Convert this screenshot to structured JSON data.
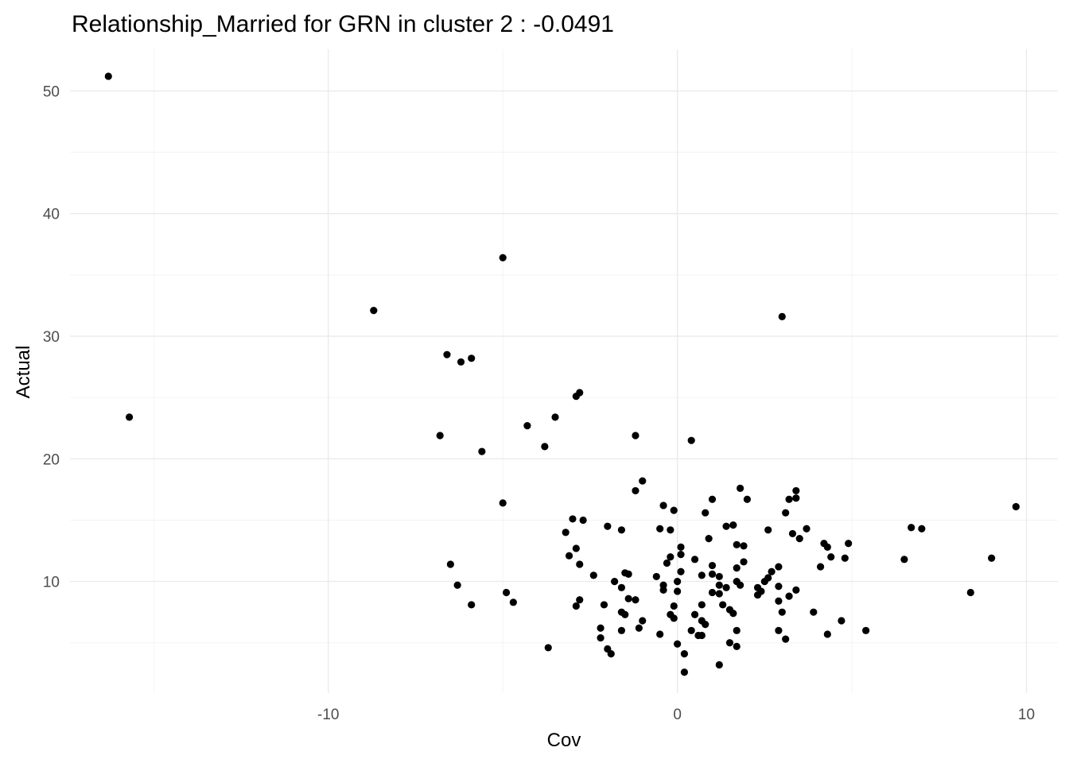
{
  "chart_data": {
    "type": "scatter",
    "title": "Relationship_Married for GRN in cluster 2 : -0.0491",
    "xlabel": "Cov",
    "ylabel": "Actual",
    "xlim": [
      -17.4,
      10.9
    ],
    "ylim": [
      0.9,
      53.4
    ],
    "x_ticks": [
      -10,
      0,
      10
    ],
    "x_tick_labels": [
      "-10",
      "0",
      "10"
    ],
    "x_minor_ticks": [
      -15,
      -5,
      5
    ],
    "y_ticks": [
      10,
      20,
      30,
      40,
      50
    ],
    "y_tick_labels": [
      "10",
      "20",
      "30",
      "40",
      "50"
    ],
    "y_minor_ticks": [
      5,
      15,
      25,
      35,
      45
    ],
    "grid": true,
    "legend": "none",
    "point_color": "#000000",
    "grid_color": "#ebebeb",
    "points": [
      {
        "x": -16.3,
        "y": 51.2
      },
      {
        "x": -15.7,
        "y": 23.4
      },
      {
        "x": -5.0,
        "y": 36.4
      },
      {
        "x": -8.7,
        "y": 32.1
      },
      {
        "x": 3.0,
        "y": 31.6
      },
      {
        "x": -6.6,
        "y": 28.5
      },
      {
        "x": -6.2,
        "y": 27.9
      },
      {
        "x": -5.9,
        "y": 28.2
      },
      {
        "x": -2.8,
        "y": 25.4
      },
      {
        "x": -2.9,
        "y": 25.1
      },
      {
        "x": -3.5,
        "y": 23.4
      },
      {
        "x": -4.3,
        "y": 22.7
      },
      {
        "x": -6.8,
        "y": 21.9
      },
      {
        "x": -3.8,
        "y": 21.0
      },
      {
        "x": -1.2,
        "y": 21.9
      },
      {
        "x": 0.4,
        "y": 21.5
      },
      {
        "x": -5.6,
        "y": 20.6
      },
      {
        "x": -1.0,
        "y": 18.2
      },
      {
        "x": -1.2,
        "y": 17.4
      },
      {
        "x": 1.8,
        "y": 17.6
      },
      {
        "x": 3.4,
        "y": 17.4
      },
      {
        "x": 2.0,
        "y": 16.7
      },
      {
        "x": 3.4,
        "y": 16.8
      },
      {
        "x": 3.2,
        "y": 16.7
      },
      {
        "x": 1.0,
        "y": 16.7
      },
      {
        "x": -5.0,
        "y": 16.4
      },
      {
        "x": -0.4,
        "y": 16.2
      },
      {
        "x": -0.1,
        "y": 15.8
      },
      {
        "x": 0.8,
        "y": 15.6
      },
      {
        "x": 3.1,
        "y": 15.6
      },
      {
        "x": -3.0,
        "y": 15.1
      },
      {
        "x": -2.7,
        "y": 15.0
      },
      {
        "x": -2.0,
        "y": 14.5
      },
      {
        "x": -1.6,
        "y": 14.2
      },
      {
        "x": -0.5,
        "y": 14.3
      },
      {
        "x": -0.2,
        "y": 14.2
      },
      {
        "x": 1.4,
        "y": 14.5
      },
      {
        "x": 1.6,
        "y": 14.6
      },
      {
        "x": 2.6,
        "y": 14.2
      },
      {
        "x": 3.7,
        "y": 14.3
      },
      {
        "x": 3.3,
        "y": 13.9
      },
      {
        "x": 6.7,
        "y": 14.4
      },
      {
        "x": 7.0,
        "y": 14.3
      },
      {
        "x": 9.7,
        "y": 16.1
      },
      {
        "x": -3.2,
        "y": 14.0
      },
      {
        "x": 0.9,
        "y": 13.5
      },
      {
        "x": 3.5,
        "y": 13.5
      },
      {
        "x": 4.2,
        "y": 13.1
      },
      {
        "x": 4.9,
        "y": 13.1
      },
      {
        "x": 4.3,
        "y": 12.8
      },
      {
        "x": 1.7,
        "y": 13.0
      },
      {
        "x": 1.9,
        "y": 12.9
      },
      {
        "x": 0.1,
        "y": 12.8
      },
      {
        "x": -2.9,
        "y": 12.7
      },
      {
        "x": -3.1,
        "y": 12.1
      },
      {
        "x": 0.1,
        "y": 12.2
      },
      {
        "x": -0.2,
        "y": 12.0
      },
      {
        "x": 0.5,
        "y": 11.8
      },
      {
        "x": 1.9,
        "y": 11.6
      },
      {
        "x": 4.4,
        "y": 12.0
      },
      {
        "x": 4.8,
        "y": 11.9
      },
      {
        "x": 6.5,
        "y": 11.8
      },
      {
        "x": 9.0,
        "y": 11.9
      },
      {
        "x": -6.5,
        "y": 11.4
      },
      {
        "x": -2.8,
        "y": 11.4
      },
      {
        "x": -0.3,
        "y": 11.5
      },
      {
        "x": 1.0,
        "y": 11.3
      },
      {
        "x": 1.7,
        "y": 11.1
      },
      {
        "x": 2.9,
        "y": 11.2
      },
      {
        "x": 4.1,
        "y": 11.2
      },
      {
        "x": -1.5,
        "y": 10.7
      },
      {
        "x": -1.4,
        "y": 10.6
      },
      {
        "x": 0.1,
        "y": 10.8
      },
      {
        "x": 0.7,
        "y": 10.5
      },
      {
        "x": 1.0,
        "y": 10.6
      },
      {
        "x": 2.7,
        "y": 10.8
      },
      {
        "x": -2.4,
        "y": 10.5
      },
      {
        "x": -0.6,
        "y": 10.4
      },
      {
        "x": 1.2,
        "y": 10.4
      },
      {
        "x": 2.6,
        "y": 10.3
      },
      {
        "x": -1.8,
        "y": 10.0
      },
      {
        "x": 0.0,
        "y": 10.0
      },
      {
        "x": 1.7,
        "y": 10.0
      },
      {
        "x": 2.5,
        "y": 10.0
      },
      {
        "x": -6.3,
        "y": 9.7
      },
      {
        "x": -0.4,
        "y": 9.7
      },
      {
        "x": 1.2,
        "y": 9.7
      },
      {
        "x": 1.8,
        "y": 9.7
      },
      {
        "x": 2.3,
        "y": 9.5
      },
      {
        "x": 2.9,
        "y": 9.6
      },
      {
        "x": -1.6,
        "y": 9.5
      },
      {
        "x": -0.4,
        "y": 9.3
      },
      {
        "x": 0.0,
        "y": 9.2
      },
      {
        "x": 1.0,
        "y": 9.1
      },
      {
        "x": 1.2,
        "y": 9.0
      },
      {
        "x": 1.4,
        "y": 9.5
      },
      {
        "x": 2.4,
        "y": 9.2
      },
      {
        "x": 3.4,
        "y": 9.3
      },
      {
        "x": 8.4,
        "y": 9.1
      },
      {
        "x": -4.9,
        "y": 9.1
      },
      {
        "x": 2.3,
        "y": 8.9
      },
      {
        "x": -1.4,
        "y": 8.6
      },
      {
        "x": -1.2,
        "y": 8.5
      },
      {
        "x": 3.2,
        "y": 8.8
      },
      {
        "x": -2.8,
        "y": 8.5
      },
      {
        "x": -4.7,
        "y": 8.3
      },
      {
        "x": -5.9,
        "y": 8.1
      },
      {
        "x": -2.9,
        "y": 8.0
      },
      {
        "x": -2.1,
        "y": 8.1
      },
      {
        "x": 0.7,
        "y": 8.1
      },
      {
        "x": 1.3,
        "y": 8.1
      },
      {
        "x": -0.1,
        "y": 8.0
      },
      {
        "x": 1.5,
        "y": 7.7
      },
      {
        "x": 2.9,
        "y": 8.4
      },
      {
        "x": -1.6,
        "y": 7.5
      },
      {
        "x": -1.5,
        "y": 7.3
      },
      {
        "x": -0.2,
        "y": 7.3
      },
      {
        "x": 0.5,
        "y": 7.3
      },
      {
        "x": 1.6,
        "y": 7.4
      },
      {
        "x": 3.0,
        "y": 7.5
      },
      {
        "x": 3.9,
        "y": 7.5
      },
      {
        "x": -0.1,
        "y": 7.0
      },
      {
        "x": -1.0,
        "y": 6.8
      },
      {
        "x": -1.1,
        "y": 6.2
      },
      {
        "x": 0.7,
        "y": 6.8
      },
      {
        "x": 0.8,
        "y": 6.5
      },
      {
        "x": 4.7,
        "y": 6.8
      },
      {
        "x": -2.2,
        "y": 6.2
      },
      {
        "x": -1.6,
        "y": 6.0
      },
      {
        "x": 0.4,
        "y": 6.0
      },
      {
        "x": 1.7,
        "y": 6.0
      },
      {
        "x": 2.9,
        "y": 6.0
      },
      {
        "x": 5.4,
        "y": 6.0
      },
      {
        "x": -2.2,
        "y": 5.4
      },
      {
        "x": -0.5,
        "y": 5.7
      },
      {
        "x": 0.6,
        "y": 5.6
      },
      {
        "x": 0.7,
        "y": 5.6
      },
      {
        "x": 3.1,
        "y": 5.3
      },
      {
        "x": 4.3,
        "y": 5.7
      },
      {
        "x": -2.0,
        "y": 4.5
      },
      {
        "x": -1.9,
        "y": 4.1
      },
      {
        "x": -3.7,
        "y": 4.6
      },
      {
        "x": 0.0,
        "y": 4.9
      },
      {
        "x": 1.5,
        "y": 5.0
      },
      {
        "x": 1.7,
        "y": 4.7
      },
      {
        "x": 0.2,
        "y": 4.1
      },
      {
        "x": 1.2,
        "y": 3.2
      },
      {
        "x": 0.2,
        "y": 2.6
      }
    ]
  }
}
